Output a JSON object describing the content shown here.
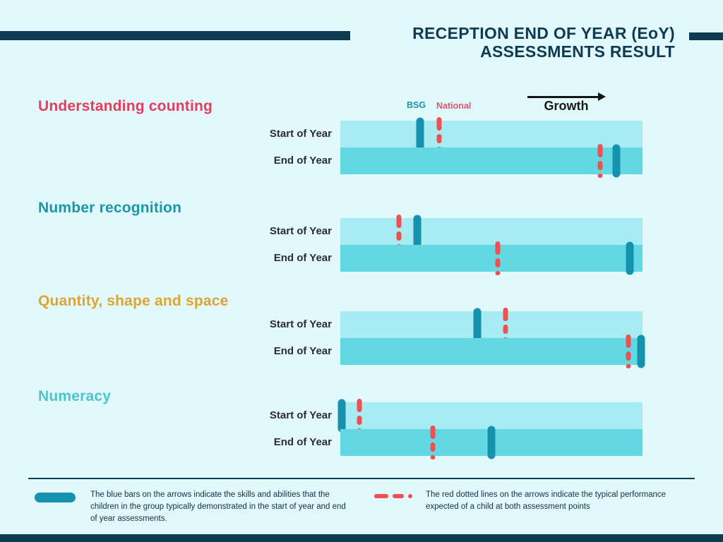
{
  "colors": {
    "background": "#E1F9FD",
    "navy": "#0E3A52",
    "bar_light": "#A7EBF3",
    "bar_dark": "#62D9E2",
    "bsg_marker": "#1692AE",
    "national_marker": "#F15050"
  },
  "header": {
    "title_line1": "RECEPTION END OF YEAR (EoY)",
    "title_line2": "ASSESSMENTS RESULT"
  },
  "axis_legend": {
    "bsg_label": "BSG",
    "national_label": "National",
    "growth_label": "Growth"
  },
  "row_labels": {
    "start": "Start of Year",
    "end": "End of Year"
  },
  "chart_data": {
    "type": "bar",
    "title": "RECEPTION END OF YEAR (EoY) ASSESSMENTS RESULT",
    "x_axis": "Growth (unlabeled scale, left-to-right arrow)",
    "value_units": "percent_of_bar_length (0-100, estimated from marker pixel positions)",
    "series_legend": [
      "BSG",
      "National"
    ],
    "row_categories": [
      "Start of Year",
      "End of Year"
    ],
    "sections": [
      {
        "title": "Understanding counting",
        "color": "#E73C5C",
        "rows": [
          {
            "label": "Start of Year",
            "bsg_pct": 26.4,
            "national_pct": 32.7
          },
          {
            "label": "End of Year",
            "bsg_pct": 91.4,
            "national_pct": 86.0
          }
        ]
      },
      {
        "title": "Number recognition",
        "color": "#1D96A4",
        "rows": [
          {
            "label": "Start of Year",
            "bsg_pct": 25.5,
            "national_pct": 19.4
          },
          {
            "label": "End of Year",
            "bsg_pct": 95.8,
            "national_pct": 52.1
          }
        ]
      },
      {
        "title": "Quantity, shape and space",
        "color": "#DFA42D",
        "rows": [
          {
            "label": "Start of Year",
            "bsg_pct": 45.3,
            "national_pct": 54.7
          },
          {
            "label": "End of Year",
            "bsg_pct": 99.5,
            "national_pct": 95.3
          }
        ]
      },
      {
        "title": "Numeracy",
        "color": "#4FC4CE",
        "rows": [
          {
            "label": "Start of Year",
            "bsg_pct": 0.5,
            "national_pct": 6.3
          },
          {
            "label": "End of Year",
            "bsg_pct": 50.0,
            "national_pct": 30.6
          }
        ]
      }
    ]
  },
  "footer": {
    "blue_note": "The blue bars on the arrows indicate the skills and abilities that the children in the group typically demonstrated in the start of year and end of year assessments.",
    "red_note": "The red dotted lines on the arrows indicate the typical performance expected of a child at both assessment points"
  }
}
